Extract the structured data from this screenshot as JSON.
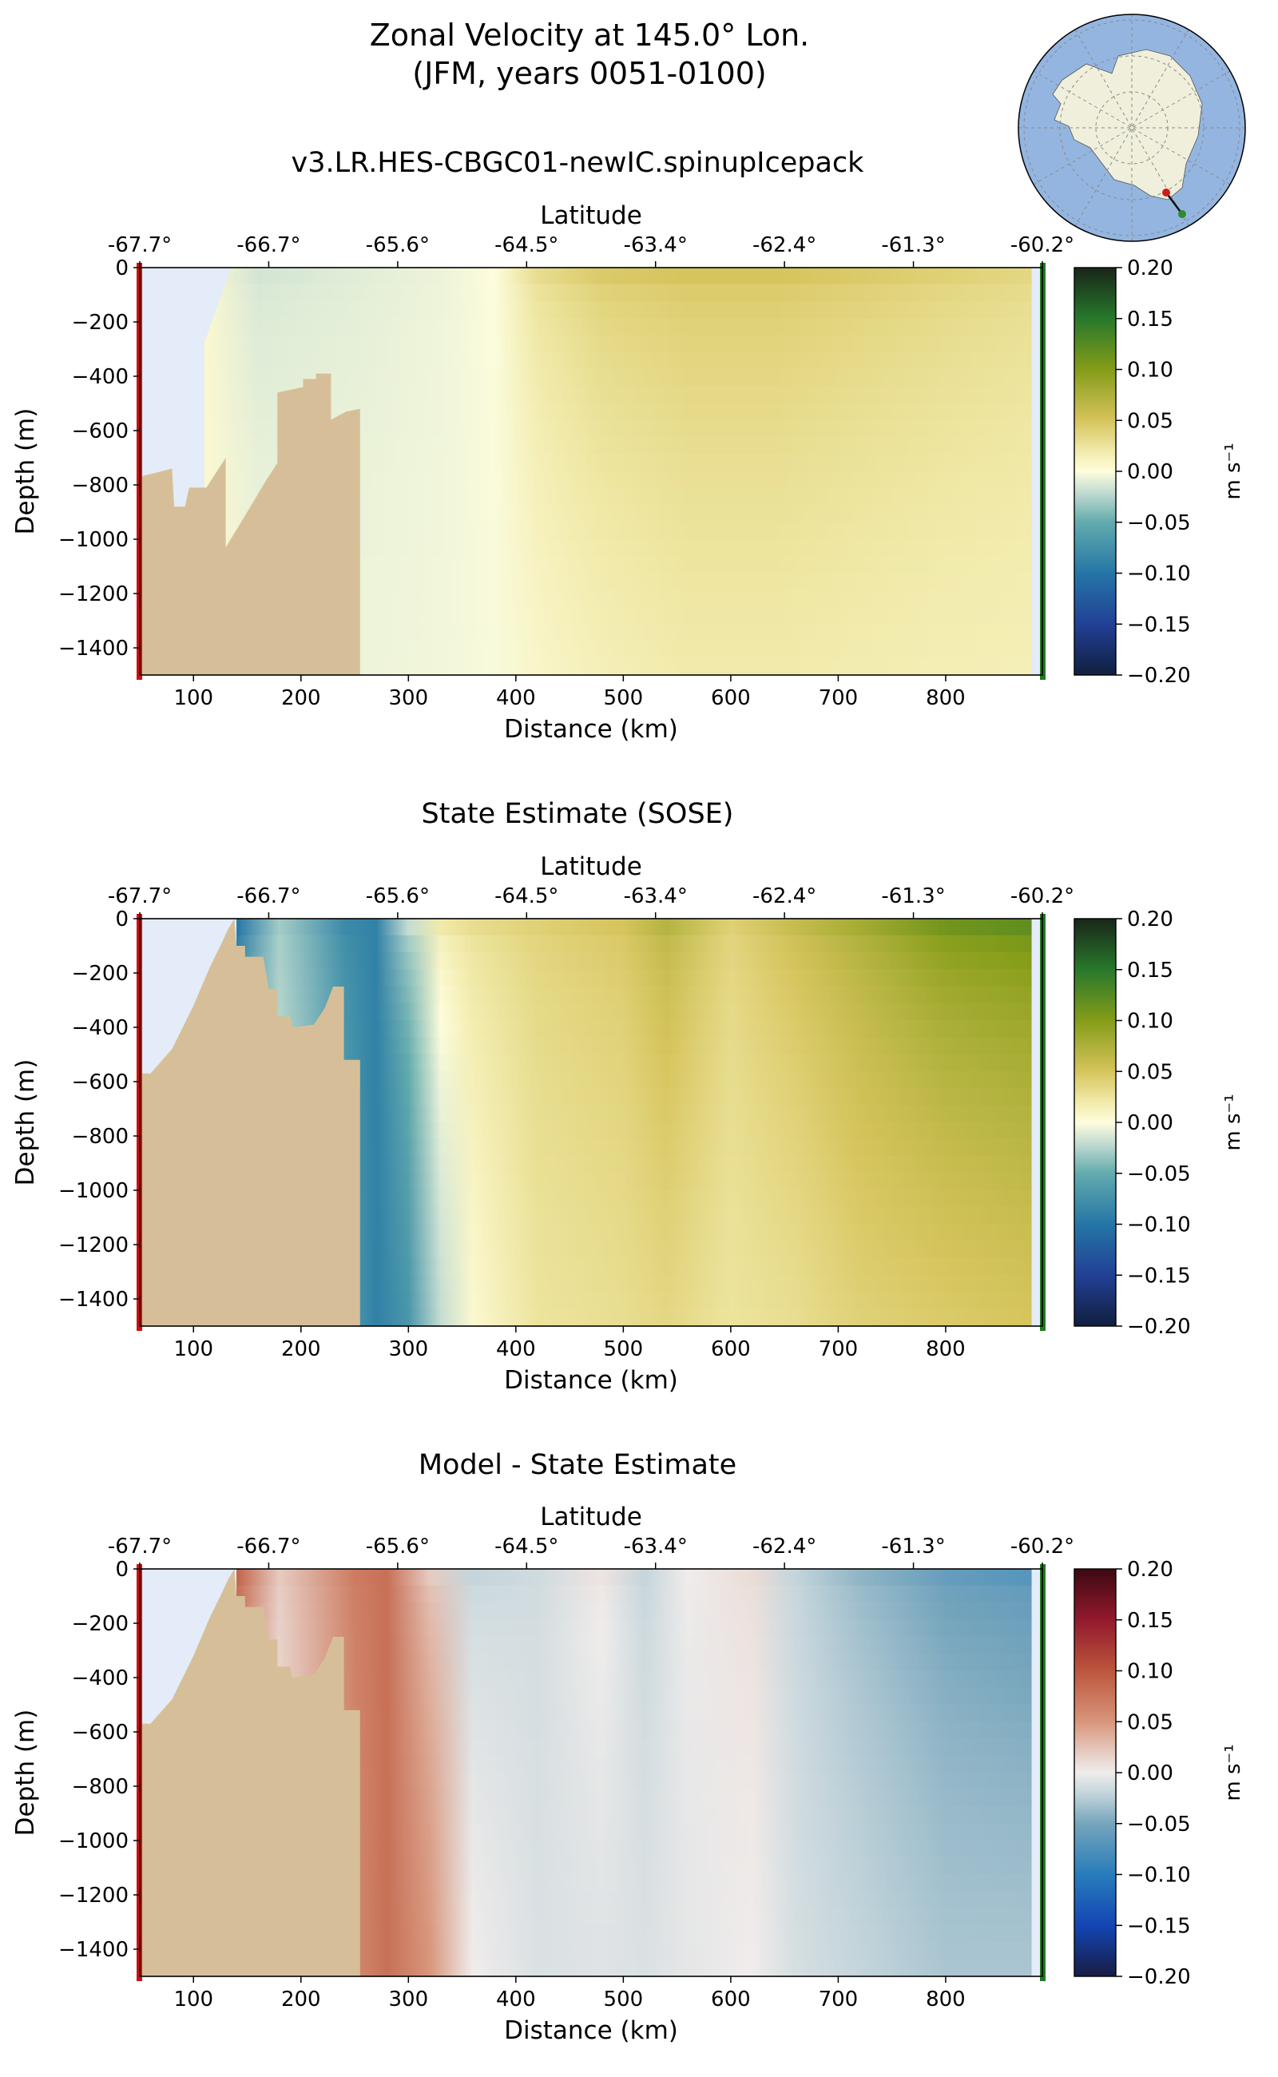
{
  "figure": {
    "title_line1": "Zonal Velocity at 145.0° Lon.",
    "title_line2": "(JFM, years 0051-0100)",
    "inset_map": {
      "region": "Antarctica south polar stereographic",
      "land_color": "#efefdc",
      "ocean_color": "#94b5e0",
      "start_marker_color": "#d11a1a",
      "end_marker_color": "#2e8b2e"
    }
  },
  "colors": {
    "bathymetry": "#d6bf98",
    "ice_shelf_region": "#e3ecf8",
    "section_start_marker": "#cc1111",
    "section_end_marker": "#1f7a1f"
  },
  "chart_data": [
    {
      "type": "heatmap",
      "title": "v3.LR.HES-CBGC01-newIC.spinupIcepack",
      "xlabel": "Distance (km)",
      "ylabel": "Depth (m)",
      "top_xlabel": "Latitude",
      "xlim": [
        50,
        890
      ],
      "ylim": [
        -1500,
        0
      ],
      "xticks": [
        100,
        200,
        300,
        400,
        500,
        600,
        700,
        800
      ],
      "yticks": [
        0,
        -200,
        -400,
        -600,
        -800,
        -1000,
        -1200,
        -1400
      ],
      "top_ticks": [
        {
          "label": "-67.7°",
          "km": 50
        },
        {
          "label": "-66.7°",
          "km": 170
        },
        {
          "label": "-65.6°",
          "km": 290
        },
        {
          "label": "-64.5°",
          "km": 410
        },
        {
          "label": "-63.4°",
          "km": 530
        },
        {
          "label": "-62.4°",
          "km": 650
        },
        {
          "label": "-61.3°",
          "km": 770
        },
        {
          "label": "-60.2°",
          "km": 890
        }
      ],
      "colormap": "delta",
      "colorbar": {
        "label": "m s⁻¹",
        "min": -0.2,
        "max": 0.2,
        "ticks": [
          "0.20",
          "0.15",
          "0.10",
          "0.05",
          "0.00",
          "−0.05",
          "−0.10",
          "−0.15",
          "−0.20"
        ]
      },
      "velocity_by_distance": {
        "km": [
          110,
          160,
          250,
          330,
          380,
          420,
          480,
          560,
          640,
          720,
          800,
          880
        ],
        "surface": [
          0.005,
          -0.015,
          -0.01,
          -0.006,
          0.0,
          0.03,
          0.045,
          0.05,
          0.05,
          0.045,
          0.04,
          0.035
        ],
        "bottom": [
          0.005,
          -0.005,
          -0.006,
          -0.004,
          -0.002,
          0.008,
          0.015,
          0.02,
          0.02,
          0.018,
          0.016,
          0.015
        ]
      },
      "bathymetry_profile": [
        [
          50,
          -770
        ],
        [
          80,
          -740
        ],
        [
          82,
          -880
        ],
        [
          92,
          -880
        ],
        [
          96,
          -810
        ],
        [
          112,
          -810
        ],
        [
          130,
          -700
        ],
        [
          130,
          -1030
        ],
        [
          150,
          -900
        ],
        [
          168,
          -780
        ],
        [
          178,
          -720
        ],
        [
          178,
          -460
        ],
        [
          202,
          -440
        ],
        [
          202,
          -410
        ],
        [
          214,
          -410
        ],
        [
          214,
          -390
        ],
        [
          228,
          -390
        ],
        [
          228,
          -560
        ],
        [
          242,
          -530
        ],
        [
          255,
          -520
        ],
        [
          255,
          -1500
        ],
        [
          50,
          -1500
        ]
      ]
    },
    {
      "type": "heatmap",
      "title": "State Estimate (SOSE)",
      "xlabel": "Distance (km)",
      "ylabel": "Depth (m)",
      "top_xlabel": "Latitude",
      "xlim": [
        50,
        890
      ],
      "ylim": [
        -1500,
        0
      ],
      "xticks": [
        100,
        200,
        300,
        400,
        500,
        600,
        700,
        800
      ],
      "yticks": [
        0,
        -200,
        -400,
        -600,
        -800,
        -1000,
        -1200,
        -1400
      ],
      "top_ticks": [
        {
          "label": "-67.7°",
          "km": 50
        },
        {
          "label": "-66.7°",
          "km": 170
        },
        {
          "label": "-65.6°",
          "km": 290
        },
        {
          "label": "-64.5°",
          "km": 410
        },
        {
          "label": "-63.4°",
          "km": 530
        },
        {
          "label": "-62.4°",
          "km": 650
        },
        {
          "label": "-61.3°",
          "km": 770
        },
        {
          "label": "-60.2°",
          "km": 890
        }
      ],
      "colormap": "delta",
      "colorbar": {
        "label": "m s⁻¹",
        "min": -0.2,
        "max": 0.2,
        "ticks": [
          "0.20",
          "0.15",
          "0.10",
          "0.05",
          "0.00",
          "−0.05",
          "−0.10",
          "−0.15",
          "−0.20"
        ]
      },
      "velocity_by_distance": {
        "km": [
          140,
          180,
          240,
          270,
          300,
          330,
          360,
          420,
          500,
          540,
          600,
          660,
          720,
          800,
          880
        ],
        "surface": [
          -0.1,
          -0.03,
          -0.08,
          -0.09,
          -0.02,
          0.02,
          0.03,
          0.04,
          0.05,
          0.07,
          0.04,
          0.06,
          0.08,
          0.11,
          0.12
        ],
        "bottom": [
          -0.06,
          -0.02,
          -0.06,
          -0.09,
          -0.07,
          -0.02,
          0.005,
          0.025,
          0.03,
          0.035,
          0.025,
          0.03,
          0.04,
          0.045,
          0.05
        ]
      },
      "bathymetry_profile": [
        [
          50,
          -570
        ],
        [
          60,
          -570
        ],
        [
          80,
          -480
        ],
        [
          100,
          -320
        ],
        [
          115,
          -180
        ],
        [
          125,
          -100
        ],
        [
          132,
          -40
        ],
        [
          138,
          0
        ],
        [
          140,
          -100
        ],
        [
          148,
          -100
        ],
        [
          148,
          -140
        ],
        [
          165,
          -140
        ],
        [
          170,
          -260
        ],
        [
          178,
          -260
        ],
        [
          178,
          -360
        ],
        [
          190,
          -360
        ],
        [
          192,
          -400
        ],
        [
          212,
          -390
        ],
        [
          222,
          -330
        ],
        [
          230,
          -250
        ],
        [
          240,
          -250
        ],
        [
          240,
          -520
        ],
        [
          255,
          -520
        ],
        [
          255,
          -1500
        ],
        [
          50,
          -1500
        ]
      ]
    },
    {
      "type": "heatmap",
      "title": "Model - State Estimate",
      "xlabel": "Distance (km)",
      "ylabel": "Depth (m)",
      "top_xlabel": "Latitude",
      "xlim": [
        50,
        890
      ],
      "ylim": [
        -1500,
        0
      ],
      "xticks": [
        100,
        200,
        300,
        400,
        500,
        600,
        700,
        800
      ],
      "yticks": [
        0,
        -200,
        -400,
        -600,
        -800,
        -1000,
        -1200,
        -1400
      ],
      "top_ticks": [
        {
          "label": "-67.7°",
          "km": 50
        },
        {
          "label": "-66.7°",
          "km": 170
        },
        {
          "label": "-65.6°",
          "km": 290
        },
        {
          "label": "-64.5°",
          "km": 410
        },
        {
          "label": "-63.4°",
          "km": 530
        },
        {
          "label": "-62.4°",
          "km": 650
        },
        {
          "label": "-61.3°",
          "km": 770
        },
        {
          "label": "-60.2°",
          "km": 890
        }
      ],
      "colormap": "balance",
      "colorbar": {
        "label": "m s⁻¹",
        "min": -0.2,
        "max": 0.2,
        "ticks": [
          "0.20",
          "0.15",
          "0.10",
          "0.05",
          "0.00",
          "−0.05",
          "−0.10",
          "−0.15",
          "−0.20"
        ]
      },
      "velocity_by_distance": {
        "km": [
          140,
          180,
          250,
          280,
          320,
          360,
          420,
          480,
          520,
          560,
          620,
          660,
          720,
          800,
          880
        ],
        "surface": [
          0.09,
          0.02,
          0.07,
          0.08,
          0.02,
          -0.02,
          -0.015,
          0.005,
          -0.02,
          0.0,
          0.01,
          -0.02,
          -0.04,
          -0.06,
          -0.07
        ],
        "bottom": [
          0.05,
          0.01,
          0.06,
          0.08,
          0.05,
          0.0,
          -0.01,
          -0.008,
          -0.01,
          -0.005,
          0.0,
          -0.012,
          -0.02,
          -0.03,
          -0.03
        ]
      },
      "bathymetry_profile": [
        [
          50,
          -570
        ],
        [
          60,
          -570
        ],
        [
          80,
          -480
        ],
        [
          100,
          -320
        ],
        [
          115,
          -180
        ],
        [
          125,
          -100
        ],
        [
          132,
          -40
        ],
        [
          138,
          0
        ],
        [
          140,
          -100
        ],
        [
          148,
          -100
        ],
        [
          148,
          -140
        ],
        [
          165,
          -140
        ],
        [
          170,
          -260
        ],
        [
          178,
          -260
        ],
        [
          178,
          -360
        ],
        [
          190,
          -360
        ],
        [
          192,
          -400
        ],
        [
          212,
          -390
        ],
        [
          222,
          -330
        ],
        [
          230,
          -250
        ],
        [
          240,
          -250
        ],
        [
          240,
          -520
        ],
        [
          255,
          -520
        ],
        [
          255,
          -1500
        ],
        [
          50,
          -1500
        ]
      ]
    }
  ]
}
